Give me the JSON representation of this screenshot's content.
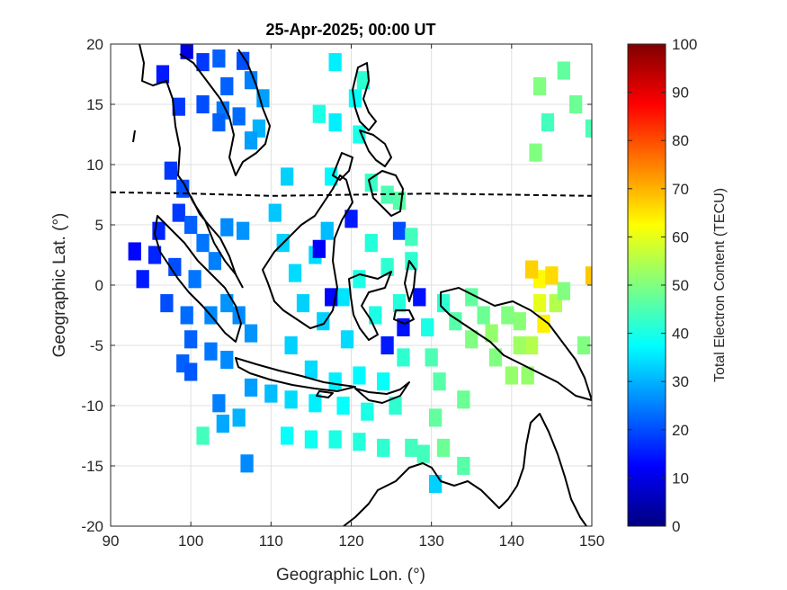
{
  "chart_data": {
    "type": "heatmap",
    "title": "25-Apr-2025; 00:00 UT",
    "xlabel": "Geographic Lon. (°)",
    "ylabel": "Geographic Lat. (°)",
    "xlim": [
      90,
      150
    ],
    "ylim": [
      -20,
      20
    ],
    "xticks": [
      90,
      100,
      110,
      120,
      130,
      140,
      150
    ],
    "yticks": [
      -20,
      -15,
      -10,
      -5,
      0,
      5,
      10,
      15,
      20
    ],
    "xtick_labels": [
      "90",
      "100",
      "110",
      "120",
      "130",
      "140",
      "150"
    ],
    "ytick_labels": [
      "-20",
      "-15",
      "-10",
      "-5",
      "0",
      "5",
      "10",
      "15",
      "20"
    ],
    "grid": true,
    "colormap": "jet",
    "colorbar": {
      "label": "Total Electron Content (TECU)",
      "range": [
        0,
        100
      ],
      "ticks": [
        0,
        10,
        20,
        30,
        40,
        50,
        60,
        70,
        80,
        90,
        100
      ],
      "tick_labels": [
        "0",
        "10",
        "20",
        "30",
        "40",
        "50",
        "60",
        "70",
        "80",
        "90",
        "100"
      ]
    },
    "magnetic_equator": {
      "style": "dashed",
      "lon": [
        90,
        100,
        110,
        120,
        130,
        140,
        150
      ],
      "lat": [
        7.7,
        7.6,
        7.4,
        7.5,
        7.6,
        7.5,
        7.4
      ]
    },
    "tec_points": [
      {
        "lon": 99.5,
        "lat": 19.5,
        "tec": 10
      },
      {
        "lon": 96.5,
        "lat": 17.5,
        "tec": 15
      },
      {
        "lon": 101.5,
        "lat": 18.5,
        "tec": 18
      },
      {
        "lon": 103.5,
        "lat": 18.8,
        "tec": 22
      },
      {
        "lon": 106.5,
        "lat": 18.6,
        "tec": 20
      },
      {
        "lon": 107.5,
        "lat": 17,
        "tec": 25
      },
      {
        "lon": 104.5,
        "lat": 16.5,
        "tec": 22
      },
      {
        "lon": 101.5,
        "lat": 15,
        "tec": 20
      },
      {
        "lon": 104,
        "lat": 14.5,
        "tec": 24
      },
      {
        "lon": 106,
        "lat": 14,
        "tec": 23
      },
      {
        "lon": 109,
        "lat": 15.5,
        "tec": 28
      },
      {
        "lon": 108.5,
        "lat": 13,
        "tec": 30
      },
      {
        "lon": 107.5,
        "lat": 12,
        "tec": 28
      },
      {
        "lon": 98.5,
        "lat": 14.8,
        "tec": 18
      },
      {
        "lon": 103.5,
        "lat": 13.5,
        "tec": 22
      },
      {
        "lon": 118,
        "lat": 18.5,
        "tec": 36
      },
      {
        "lon": 121.5,
        "lat": 17,
        "tec": 42
      },
      {
        "lon": 120.5,
        "lat": 15.5,
        "tec": 38
      },
      {
        "lon": 118,
        "lat": 13.5,
        "tec": 36
      },
      {
        "lon": 116,
        "lat": 14.2,
        "tec": 40
      },
      {
        "lon": 121,
        "lat": 12.5,
        "tec": 40
      },
      {
        "lon": 112,
        "lat": 9,
        "tec": 33
      },
      {
        "lon": 117.5,
        "lat": 9,
        "tec": 37
      },
      {
        "lon": 122.5,
        "lat": 8.5,
        "tec": 43
      },
      {
        "lon": 124.5,
        "lat": 7.5,
        "tec": 45
      },
      {
        "lon": 126,
        "lat": 7,
        "tec": 46
      },
      {
        "lon": 97.5,
        "lat": 9.5,
        "tec": 18
      },
      {
        "lon": 99,
        "lat": 8,
        "tec": 20
      },
      {
        "lon": 98.5,
        "lat": 6,
        "tec": 18
      },
      {
        "lon": 96,
        "lat": 4.5,
        "tec": 16
      },
      {
        "lon": 100,
        "lat": 5,
        "tec": 22
      },
      {
        "lon": 101.5,
        "lat": 3.5,
        "tec": 24
      },
      {
        "lon": 103,
        "lat": 2,
        "tec": 25
      },
      {
        "lon": 104.5,
        "lat": 4.8,
        "tec": 26
      },
      {
        "lon": 106.5,
        "lat": 4.5,
        "tec": 27
      },
      {
        "lon": 100.5,
        "lat": 0.5,
        "tec": 24
      },
      {
        "lon": 98,
        "lat": 1.5,
        "tec": 20
      },
      {
        "lon": 95.5,
        "lat": 2.5,
        "tec": 16
      },
      {
        "lon": 94,
        "lat": 0.5,
        "tec": 15
      },
      {
        "lon": 93,
        "lat": 2.8,
        "tec": 13
      },
      {
        "lon": 97,
        "lat": -1.5,
        "tec": 20
      },
      {
        "lon": 99.5,
        "lat": -2.5,
        "tec": 23
      },
      {
        "lon": 102.5,
        "lat": -2.5,
        "tec": 26
      },
      {
        "lon": 104.5,
        "lat": -1.5,
        "tec": 27
      },
      {
        "lon": 106,
        "lat": -2.5,
        "tec": 26
      },
      {
        "lon": 100,
        "lat": -4.5,
        "tec": 22
      },
      {
        "lon": 102.5,
        "lat": -5.5,
        "tec": 24
      },
      {
        "lon": 104.5,
        "lat": -6.2,
        "tec": 26
      },
      {
        "lon": 99,
        "lat": -6.5,
        "tec": 22
      },
      {
        "lon": 100,
        "lat": -7.2,
        "tec": 21
      },
      {
        "lon": 107.5,
        "lat": -4,
        "tec": 27
      },
      {
        "lon": 103.5,
        "lat": -9.8,
        "tec": 25
      },
      {
        "lon": 107.5,
        "lat": -8.5,
        "tec": 28
      },
      {
        "lon": 110,
        "lat": -9,
        "tec": 31
      },
      {
        "lon": 106,
        "lat": -11,
        "tec": 30
      },
      {
        "lon": 104,
        "lat": -11.5,
        "tec": 29
      },
      {
        "lon": 107,
        "lat": -14.8,
        "tec": 26
      },
      {
        "lon": 101.5,
        "lat": -12.5,
        "tec": 44
      },
      {
        "lon": 110.5,
        "lat": 6,
        "tec": 32
      },
      {
        "lon": 111.5,
        "lat": 3.5,
        "tec": 33
      },
      {
        "lon": 113,
        "lat": 1,
        "tec": 34
      },
      {
        "lon": 114,
        "lat": -1.5,
        "tec": 33
      },
      {
        "lon": 115.5,
        "lat": 2.5,
        "tec": 34
      },
      {
        "lon": 117,
        "lat": 4.5,
        "tec": 31
      },
      {
        "lon": 116.5,
        "lat": -3,
        "tec": 33
      },
      {
        "lon": 119,
        "lat": -1,
        "tec": 35
      },
      {
        "lon": 119.5,
        "lat": -4.5,
        "tec": 34
      },
      {
        "lon": 112.5,
        "lat": -5,
        "tec": 33
      },
      {
        "lon": 115,
        "lat": -7,
        "tec": 34
      },
      {
        "lon": 118,
        "lat": -8,
        "tec": 36
      },
      {
        "lon": 121,
        "lat": -7.5,
        "tec": 37
      },
      {
        "lon": 124,
        "lat": -8,
        "tec": 38
      },
      {
        "lon": 112.5,
        "lat": -9.5,
        "tec": 34
      },
      {
        "lon": 115.5,
        "lat": -9.8,
        "tec": 36
      },
      {
        "lon": 119,
        "lat": -10,
        "tec": 38
      },
      {
        "lon": 122,
        "lat": -10.5,
        "tec": 40
      },
      {
        "lon": 125.5,
        "lat": -10,
        "tec": 42
      },
      {
        "lon": 116,
        "lat": 3,
        "tec": 12
      },
      {
        "lon": 117.5,
        "lat": -1,
        "tec": 13
      },
      {
        "lon": 120,
        "lat": 5.5,
        "tec": 15
      },
      {
        "lon": 121,
        "lat": 0.5,
        "tec": 40
      },
      {
        "lon": 122.5,
        "lat": 3.5,
        "tec": 41
      },
      {
        "lon": 124.5,
        "lat": 1.5,
        "tec": 42
      },
      {
        "lon": 123,
        "lat": -2.5,
        "tec": 40
      },
      {
        "lon": 126,
        "lat": -1.5,
        "tec": 41
      },
      {
        "lon": 126.5,
        "lat": -3.5,
        "tec": 14
      },
      {
        "lon": 128.5,
        "lat": -1,
        "tec": 14
      },
      {
        "lon": 127.5,
        "lat": 2,
        "tec": 42
      },
      {
        "lon": 126,
        "lat": 4.5,
        "tec": 20
      },
      {
        "lon": 127.5,
        "lat": 4,
        "tec": 44
      },
      {
        "lon": 124.5,
        "lat": -5,
        "tec": 15
      },
      {
        "lon": 126.5,
        "lat": -6,
        "tec": 42
      },
      {
        "lon": 129.5,
        "lat": -3.5,
        "tec": 40
      },
      {
        "lon": 131.5,
        "lat": -1.5,
        "tec": 42
      },
      {
        "lon": 130,
        "lat": -6,
        "tec": 45
      },
      {
        "lon": 131,
        "lat": -8,
        "tec": 46
      },
      {
        "lon": 130.5,
        "lat": -11,
        "tec": 47
      },
      {
        "lon": 134,
        "lat": -9.5,
        "tec": 48
      },
      {
        "lon": 133,
        "lat": -3,
        "tec": 46
      },
      {
        "lon": 135,
        "lat": -1,
        "tec": 47
      },
      {
        "lon": 136.5,
        "lat": -2.5,
        "tec": 48
      },
      {
        "lon": 135,
        "lat": -4.5,
        "tec": 50
      },
      {
        "lon": 137.5,
        "lat": -4,
        "tec": 52
      },
      {
        "lon": 138,
        "lat": -6,
        "tec": 50
      },
      {
        "lon": 139.5,
        "lat": -2.5,
        "tec": 50
      },
      {
        "lon": 141,
        "lat": -3,
        "tec": 51
      },
      {
        "lon": 141,
        "lat": -5,
        "tec": 53
      },
      {
        "lon": 142.5,
        "lat": -5,
        "tec": 55
      },
      {
        "lon": 140,
        "lat": -7.5,
        "tec": 52
      },
      {
        "lon": 142,
        "lat": -7.5,
        "tec": 52
      },
      {
        "lon": 143.5,
        "lat": -1.5,
        "tec": 60
      },
      {
        "lon": 145.5,
        "lat": -1.5,
        "tec": 55
      },
      {
        "lon": 146.5,
        "lat": -0.5,
        "tec": 50
      },
      {
        "lon": 143.5,
        "lat": 0.5,
        "tec": 63
      },
      {
        "lon": 145,
        "lat": 0.8,
        "tec": 66
      },
      {
        "lon": 142.5,
        "lat": 1.3,
        "tec": 67
      },
      {
        "lon": 144,
        "lat": -3.2,
        "tec": 64
      },
      {
        "lon": 149,
        "lat": -5,
        "tec": 50
      },
      {
        "lon": 150,
        "lat": 0.8,
        "tec": 68
      },
      {
        "lon": 131.5,
        "lat": -13.5,
        "tec": 48
      },
      {
        "lon": 134,
        "lat": -15,
        "tec": 46
      },
      {
        "lon": 129,
        "lat": -14,
        "tec": 44
      },
      {
        "lon": 130.5,
        "lat": -16.5,
        "tec": 33
      },
      {
        "lon": 112,
        "lat": -12.5,
        "tec": 38
      },
      {
        "lon": 115,
        "lat": -12.8,
        "tec": 39
      },
      {
        "lon": 118,
        "lat": -12.8,
        "tec": 40
      },
      {
        "lon": 121,
        "lat": -13,
        "tec": 41
      },
      {
        "lon": 124,
        "lat": -13.5,
        "tec": 42
      },
      {
        "lon": 127.5,
        "lat": -13.5,
        "tec": 44
      },
      {
        "lon": 143.5,
        "lat": 16.5,
        "tec": 50
      },
      {
        "lon": 146.5,
        "lat": 17.8,
        "tec": 47
      },
      {
        "lon": 148,
        "lat": 15,
        "tec": 48
      },
      {
        "lon": 144.5,
        "lat": 13.5,
        "tec": 44
      },
      {
        "lon": 150,
        "lat": 13,
        "tec": 45
      },
      {
        "lon": 143,
        "lat": 11,
        "tec": 50
      }
    ]
  }
}
